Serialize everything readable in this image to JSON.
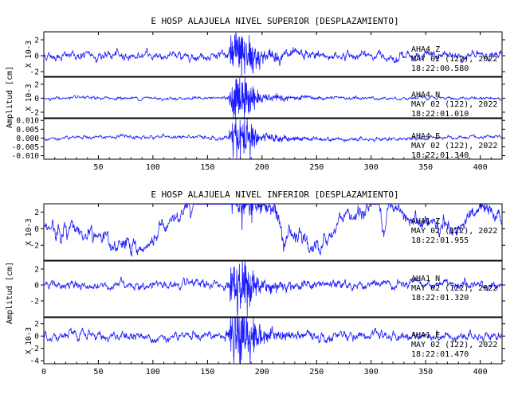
{
  "chart_data": [
    {
      "type": "line",
      "title": "E HOSP ALAJUELA NIVEL SUPERIOR [DESPLAZAMIENTO]",
      "xlabel": "",
      "ylabel": "Amplitud [cm]",
      "xlim": [
        0,
        420
      ],
      "x_ticks": [
        50,
        100,
        150,
        200,
        250,
        300,
        350,
        400
      ],
      "series": [
        {
          "name": "AHA4 Z",
          "date": "MAY 02 (122), 2022",
          "time": "18:22:00.580",
          "unit": "X 10-3",
          "ylim": [
            -2.6,
            3.0
          ],
          "yticks": [
            2,
            0,
            -2
          ],
          "event_peak": 3.0,
          "noise": 0.5,
          "drift": "flat"
        },
        {
          "name": "AHA4 N",
          "date": "MAY 02 (122), 2022",
          "time": "18:22:01.010",
          "unit": "X 10-3",
          "ylim": [
            -2.8,
            3.0
          ],
          "yticks": [
            2,
            0,
            -2
          ],
          "event_peak": 2.6,
          "noise": 0.2,
          "drift": "flat"
        },
        {
          "name": "AHA4 E",
          "date": "MAY 02 (122), 2022",
          "time": "18:22:01.340",
          "unit": "",
          "ylim": [
            -0.012,
            0.011
          ],
          "yticks": [
            0.01,
            0.005,
            0.0,
            -0.005,
            -0.01
          ],
          "ytick_labels": [
            "0.010",
            "0.005",
            "0.000",
            "-0.005",
            "-0.010"
          ],
          "event_peak": 0.01,
          "noise": 0.001,
          "drift": "slight"
        }
      ]
    },
    {
      "type": "line",
      "title": "E HOSP ALAJUELA NIVEL INFERIOR [DESPLAZAMIENTO]",
      "xlabel": "",
      "ylabel": "Amplitud [cm]",
      "xlim": [
        0,
        420
      ],
      "x_ticks": [
        0,
        50,
        100,
        150,
        200,
        250,
        300,
        350,
        400
      ],
      "series": [
        {
          "name": "AHA1 Z",
          "date": "MAY 02 (122), 2022",
          "time": "18:22:01.955",
          "unit": "X 10-3",
          "ylim": [
            -3.8,
            3.0
          ],
          "yticks": [
            2,
            0,
            -2
          ],
          "event_peak": 3.0,
          "noise": 0.9,
          "drift": "wander"
        },
        {
          "name": "AHA1 N",
          "date": "MAY 02 (122), 2022",
          "time": "18:22:01.320",
          "unit": "",
          "ylim": [
            -4.0,
            3.0
          ],
          "yticks": [
            2,
            0,
            -2
          ],
          "event_peak": 3.4,
          "noise": 0.5,
          "drift": "flat"
        },
        {
          "name": "AHA1 E",
          "date": "MAY 02 (122), 2022",
          "time": "18:22:01.470",
          "unit": "X 10-3",
          "ylim": [
            -4.5,
            3.0
          ],
          "yticks": [
            2,
            0,
            -2,
            -4
          ],
          "event_peak": 4.2,
          "noise": 0.7,
          "drift": "flat"
        }
      ]
    }
  ]
}
